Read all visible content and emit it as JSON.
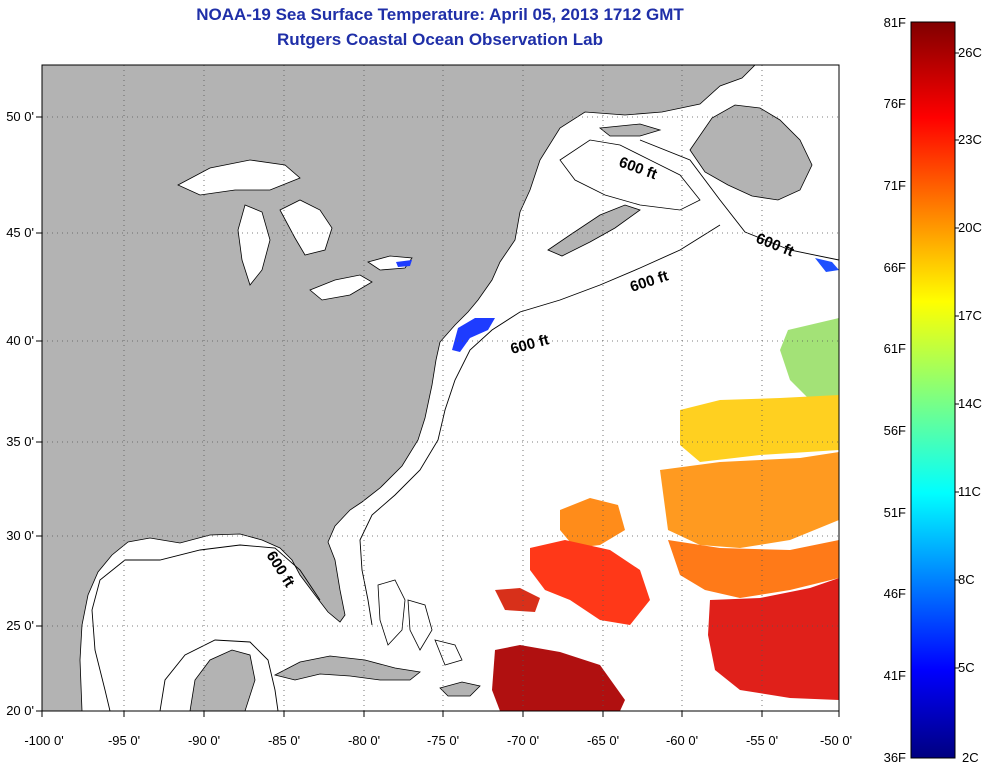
{
  "header": {
    "title": "NOAA-19 Sea Surface Temperature:  April 05, 2013 1712 GMT",
    "subtitle": "Rutgers Coastal Ocean Observation Lab"
  },
  "map": {
    "lon_labels": [
      "-100 0'",
      "-95 0'",
      "-90 0'",
      "-85 0'",
      "-80 0'",
      "-75 0'",
      "-70 0'",
      "-65 0'",
      "-60 0'",
      "-55 0'",
      "-50 0'"
    ],
    "lat_labels": [
      "50 0'",
      "45 0'",
      "40 0'",
      "35 0'",
      "30 0'",
      "25 0'",
      "20 0'"
    ],
    "lon_range": [
      -100,
      -50
    ],
    "lat_range": [
      20,
      52
    ],
    "grid": "dotted",
    "contour_label": "600 ft",
    "colors": {
      "land": "#b3b3b3",
      "ocean": "#ffffff",
      "coast": "#000000"
    }
  },
  "colorbar": {
    "fahrenheit_labels": [
      "81F",
      "76F",
      "71F",
      "66F",
      "61F",
      "56F",
      "51F",
      "46F",
      "41F",
      "36F"
    ],
    "celsius_labels": [
      "26C",
      "23C",
      "20C",
      "17C",
      "14C",
      "11C",
      "8C",
      "5C",
      "2C"
    ],
    "range_f": [
      36,
      81
    ],
    "range_c": [
      2,
      27
    ],
    "colormap": "jet"
  }
}
